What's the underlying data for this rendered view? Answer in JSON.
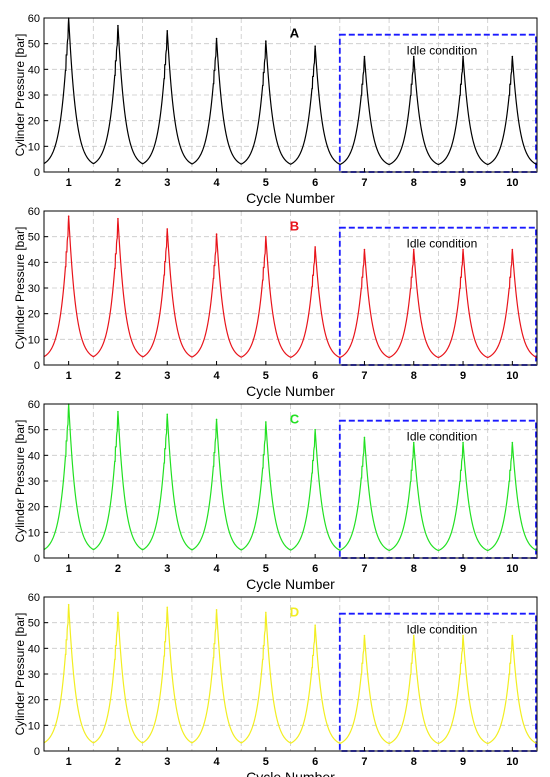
{
  "chart_data": [
    {
      "type": "line",
      "panel_label": "A",
      "color": "#000000",
      "xlabel": "Cycle Number",
      "ylabel": "Cylinder Pressure [bar]",
      "xlim": [
        0.5,
        10.5
      ],
      "ylim": [
        0,
        60
      ],
      "x_ticks": [
        "1",
        "2",
        "3",
        "4",
        "5",
        "6",
        "7",
        "8",
        "9",
        "10"
      ],
      "y_ticks": [
        "0",
        "10",
        "20",
        "30",
        "40",
        "50",
        "60"
      ],
      "grid": true,
      "series": [
        {
          "x": [
            1,
            2,
            3,
            4,
            5,
            6,
            7,
            8,
            9,
            10
          ],
          "values": [
            60,
            57,
            55,
            52,
            51,
            49,
            45,
            45,
            45,
            45
          ],
          "baseline": [
            3,
            1,
            2,
            2,
            2,
            2,
            3,
            2,
            2,
            2
          ]
        }
      ],
      "annotation": {
        "text": "Idle condition",
        "x_start": 6.5,
        "x_end": 10.5
      }
    },
    {
      "type": "line",
      "panel_label": "B",
      "color": "#e8141b",
      "xlabel": "Cycle Number",
      "ylabel": "Cylinder Pressure [bar]",
      "xlim": [
        0.5,
        10.5
      ],
      "ylim": [
        0,
        60
      ],
      "x_ticks": [
        "1",
        "2",
        "3",
        "4",
        "5",
        "6",
        "7",
        "8",
        "9",
        "10"
      ],
      "y_ticks": [
        "0",
        "10",
        "20",
        "30",
        "40",
        "50",
        "60"
      ],
      "grid": true,
      "series": [
        {
          "x": [
            1,
            2,
            3,
            4,
            5,
            6,
            7,
            8,
            9,
            10
          ],
          "values": [
            58,
            57,
            53,
            51,
            50,
            46,
            45,
            45,
            45,
            45
          ],
          "baseline": [
            2,
            2,
            2,
            2,
            2,
            2,
            2,
            2,
            2,
            2
          ]
        }
      ],
      "annotation": {
        "text": "Idle condition",
        "x_start": 6.5,
        "x_end": 10.5
      }
    },
    {
      "type": "line",
      "panel_label": "C",
      "color": "#22e022",
      "xlabel": "Cycle Number",
      "ylabel": "Cylinder Pressure [bar]",
      "xlim": [
        0.5,
        10.5
      ],
      "ylim": [
        0,
        60
      ],
      "x_ticks": [
        "1",
        "2",
        "3",
        "4",
        "5",
        "6",
        "7",
        "8",
        "9",
        "10"
      ],
      "y_ticks": [
        "0",
        "10",
        "20",
        "30",
        "40",
        "50",
        "60"
      ],
      "grid": true,
      "series": [
        {
          "x": [
            1,
            2,
            3,
            4,
            5,
            6,
            7,
            8,
            9,
            10
          ],
          "values": [
            60,
            57,
            56,
            54,
            53,
            50,
            47,
            45,
            45,
            45
          ],
          "baseline": [
            2,
            2,
            2,
            2,
            2,
            2,
            2,
            2,
            2,
            2
          ]
        }
      ],
      "annotation": {
        "text": "Idle condition",
        "x_start": 6.5,
        "x_end": 10.5
      }
    },
    {
      "type": "line",
      "panel_label": "D",
      "color": "#f2ee22",
      "xlabel": "Cycle Number",
      "ylabel": "Cylinder Pressure [bar]",
      "xlim": [
        0.5,
        10.5
      ],
      "ylim": [
        0,
        60
      ],
      "x_ticks": [
        "1",
        "2",
        "3",
        "4",
        "5",
        "6",
        "7",
        "8",
        "9",
        "10"
      ],
      "y_ticks": [
        "0",
        "10",
        "20",
        "30",
        "40",
        "50",
        "60"
      ],
      "grid": true,
      "series": [
        {
          "x": [
            1,
            2,
            3,
            4,
            5,
            6,
            7,
            8,
            9,
            10
          ],
          "values": [
            57,
            54,
            56,
            55,
            54,
            49,
            45,
            45,
            45,
            45
          ],
          "baseline": [
            2,
            2,
            2,
            2,
            2,
            2,
            2,
            2,
            2,
            2
          ]
        }
      ],
      "annotation": {
        "text": "Idle condition",
        "x_start": 6.5,
        "x_end": 10.5
      }
    }
  ],
  "colors": {
    "grid": "#c8c8c8",
    "annotation_box": "#1a1aff",
    "axis": "#000000"
  }
}
